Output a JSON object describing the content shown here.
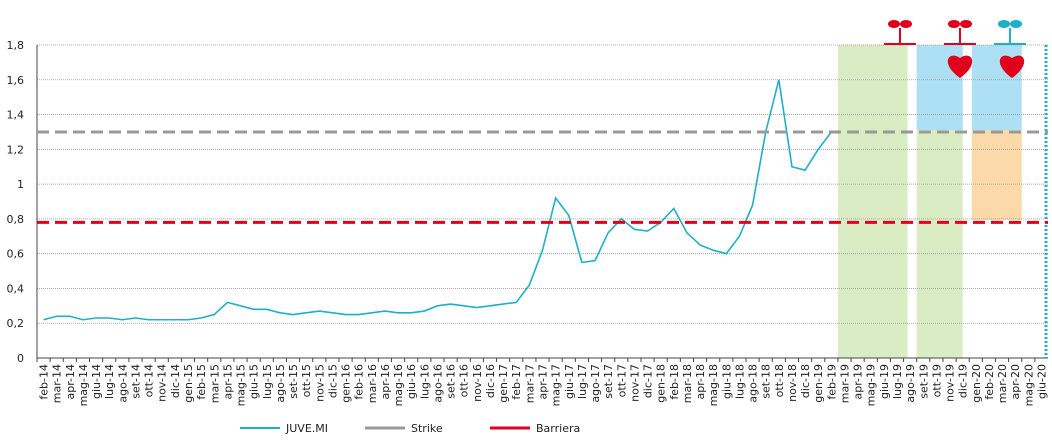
{
  "chart_data": {
    "type": "line",
    "categories": [
      "feb-14",
      "mar-14",
      "apr-14",
      "mag-14",
      "giu-14",
      "lug-14",
      "ago-14",
      "set-14",
      "ott-14",
      "nov-14",
      "dic-14",
      "gen-15",
      "feb-15",
      "mar-15",
      "apr-15",
      "mag-15",
      "giu-15",
      "lug-15",
      "ago-15",
      "set-15",
      "ott-15",
      "nov-15",
      "dic-15",
      "gen-16",
      "feb-16",
      "mar-16",
      "apr-16",
      "mag-16",
      "giu-16",
      "lug-16",
      "ago-16",
      "set-16",
      "ott-16",
      "nov-16",
      "dic-16",
      "gen-17",
      "feb-17",
      "mar-17",
      "apr-17",
      "mag-17",
      "giu-17",
      "lug-17",
      "ago-17",
      "set-17",
      "ott-17",
      "nov-17",
      "dic-17",
      "gen-18",
      "feb-18",
      "mar-18",
      "apr-18",
      "mag-18",
      "giu-18",
      "lug-18",
      "ago-18",
      "set-18",
      "ott-18",
      "nov-18",
      "dic-18",
      "gen-19",
      "feb-19",
      "mar-19",
      "apr-19",
      "mag-19",
      "giu-19",
      "lug-19",
      "ago-19",
      "set-19",
      "ott-19",
      "nov-19",
      "dic-19",
      "gen-20",
      "feb-20",
      "mar-20",
      "apr-20",
      "mag-20",
      "giu-20"
    ],
    "series": [
      {
        "name": "JUVE.MI",
        "color": "#1fb0c8",
        "values": [
          0.22,
          0.24,
          0.24,
          0.22,
          0.23,
          0.23,
          0.22,
          0.23,
          0.22,
          0.22,
          0.22,
          0.22,
          0.23,
          0.25,
          0.32,
          0.3,
          0.28,
          0.28,
          0.26,
          0.25,
          0.26,
          0.27,
          0.26,
          0.25,
          0.25,
          0.26,
          0.27,
          0.26,
          0.26,
          0.27,
          0.3,
          0.31,
          0.3,
          0.29,
          0.3,
          0.31,
          0.32,
          0.42,
          0.62,
          0.92,
          0.82,
          0.55,
          0.56,
          0.72,
          0.8,
          0.74,
          0.73,
          0.78,
          0.86,
          0.72,
          0.65,
          0.62,
          0.6,
          0.7,
          0.88,
          1.3,
          1.6,
          1.1,
          1.08,
          1.2,
          1.3,
          null,
          null,
          null,
          null,
          null,
          null,
          null,
          null,
          null,
          null,
          null,
          null,
          null,
          null,
          null,
          null
        ]
      },
      {
        "name": "Strike",
        "color": "#999999",
        "value": 1.3
      },
      {
        "name": "Barriera",
        "color": "#e0001b",
        "value": 0.78
      }
    ],
    "ylim": [
      0,
      1.8
    ],
    "yticks": [
      0,
      {
        "value": 0.2,
        "label": "0,2"
      },
      {
        "value": 0.4,
        "label": "0,4"
      },
      {
        "value": 0.6,
        "label": "0,6"
      },
      {
        "value": 0.8,
        "label": "0,8"
      },
      1,
      {
        "value": 1.2,
        "label": "1,2"
      },
      {
        "value": 1.4,
        "label": "1,4"
      },
      {
        "value": 1.6,
        "label": "1,6"
      },
      {
        "value": 1.8,
        "label": "1,8"
      }
    ],
    "grid": true
  }
}
